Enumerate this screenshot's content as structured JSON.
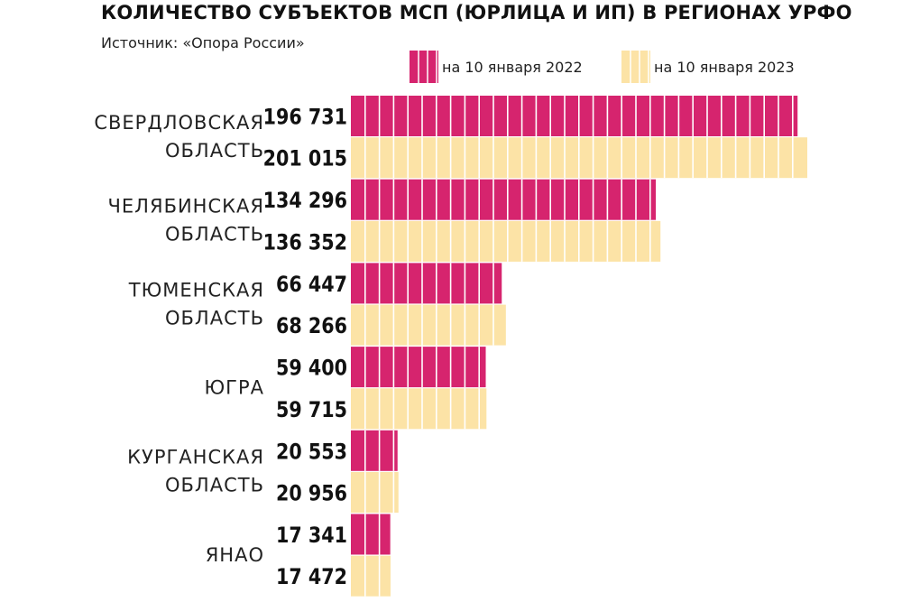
{
  "header": {
    "title": "КОЛИЧЕСТВО СУБЪЕКТОВ МСП (ЮРЛИЦА И ИП) В РЕГИОНАХ УРФО",
    "source": "Источник: «Опора России»"
  },
  "colors": {
    "series_2022": "#d6246e",
    "series_2023": "#fce3a6",
    "divider": "#ffffff"
  },
  "chart_data": {
    "type": "bar",
    "orientation": "horizontal",
    "title": "КОЛИЧЕСТВО СУБЪЕКТОВ МСП (ЮРЛИЦА И ИП) В РЕГИОНАХ УРФО",
    "legend_position": "top-right",
    "grid": false,
    "xlim": [
      0,
      201015
    ],
    "categories": [
      [
        "СВЕРДЛОВСКАЯ",
        "ОБЛАСТЬ"
      ],
      [
        "ЧЕЛЯБИНСКАЯ",
        "ОБЛАСТЬ"
      ],
      [
        "ТЮМЕНСКАЯ",
        "ОБЛАСТЬ"
      ],
      [
        "ЮГРА"
      ],
      [
        "КУРГАНСКАЯ",
        "ОБЛАСТЬ"
      ],
      [
        "ЯНАО"
      ]
    ],
    "series": [
      {
        "name": "на 10 января 2022",
        "color": "#d6246e",
        "values": [
          196731,
          134296,
          66447,
          59400,
          20553,
          17341
        ],
        "labels": [
          "196 731",
          "134 296",
          "66 447",
          "59 400",
          "20 553",
          "17 341"
        ]
      },
      {
        "name": "на 10 января 2023",
        "color": "#fce3a6",
        "values": [
          201015,
          136352,
          68266,
          59715,
          20956,
          17472
        ],
        "labels": [
          "201 015",
          "136 352",
          "68 266",
          "59 715",
          "20 956",
          "17 472"
        ]
      }
    ]
  }
}
